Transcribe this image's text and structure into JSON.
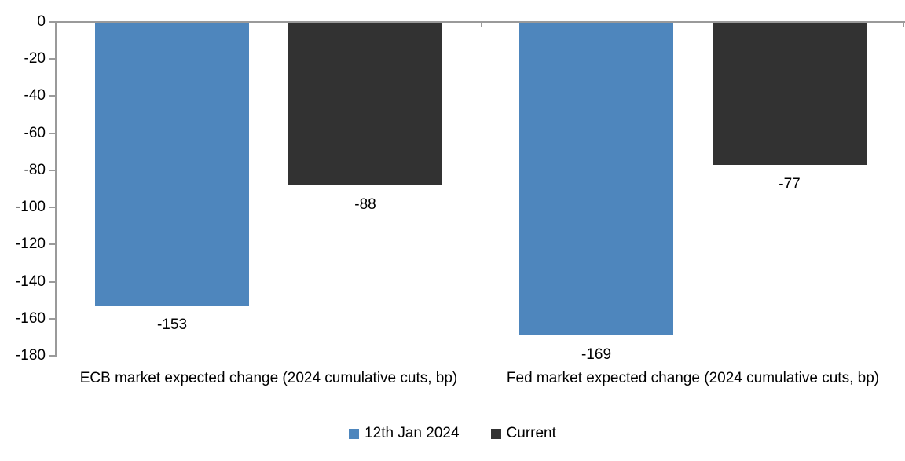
{
  "chart_data": {
    "type": "bar",
    "title": "",
    "categories": [
      "ECB market expected change (2024 cumulative cuts, bp)",
      "Fed market expected change (2024 cumulative cuts, bp)"
    ],
    "series": [
      {
        "name": "12th Jan 2024",
        "color": "#4E86BD",
        "values": [
          -153,
          -169
        ],
        "labels": [
          "-153",
          "-169"
        ]
      },
      {
        "name": "Current",
        "color": "#323232",
        "values": [
          -88,
          -77
        ],
        "labels": [
          "-88",
          "-77"
        ]
      }
    ],
    "ylim": [
      -180,
      0
    ],
    "y_ticks": [
      0,
      -20,
      -40,
      -60,
      -80,
      -100,
      -120,
      -140,
      -160,
      -180
    ],
    "grid": false,
    "legend_position": "bottom",
    "data_labels_position": "outside-end",
    "axis_color": "#9a9a9a",
    "text_color": "#000000",
    "background": "#ffffff"
  }
}
